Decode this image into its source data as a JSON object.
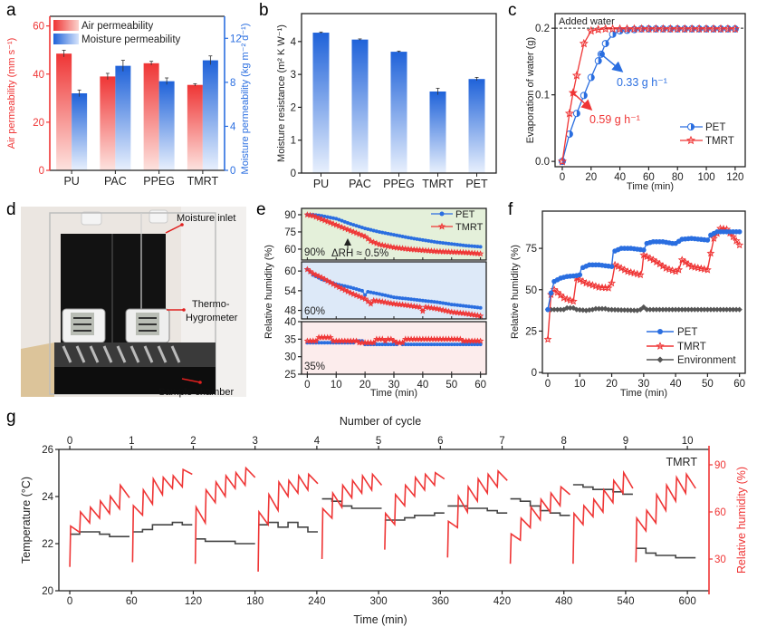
{
  "panel_labels": [
    "a",
    "b",
    "c",
    "d",
    "e",
    "f",
    "g"
  ],
  "colors": {
    "red": "#ef3535",
    "blue": "#2a6ee0",
    "grey": "#444444",
    "env": "#555555"
  },
  "photo_d": {
    "labels": {
      "moisture_inlet": "Moisture inlet",
      "thermo_1": "Thermo-",
      "thermo_2": "Hygrometer",
      "sample_chamber": "Sample chamber"
    }
  },
  "chart_data": [
    {
      "panel": "a",
      "type": "bar",
      "categories": [
        "PU",
        "PAC",
        "PPEG",
        "TMRT"
      ],
      "series": [
        {
          "name": "Air permeability",
          "axis": "left",
          "values": [
            48.5,
            39.0,
            44.5,
            35.5
          ],
          "errors": [
            1.4,
            1.3,
            0.8,
            0.5
          ],
          "color": "#ef3535"
        },
        {
          "name": "Moisture permeability",
          "axis": "right",
          "values": [
            7.0,
            9.5,
            8.1,
            10.0
          ],
          "errors": [
            0.3,
            0.5,
            0.3,
            0.4
          ],
          "color": "#2a6ee0"
        }
      ],
      "ylabel_left": "Air permeability (mm s⁻¹)",
      "ylabel_right": "Moisture permeability (kg m⁻² d⁻¹)",
      "ylim_left": [
        0,
        64
      ],
      "yticks_left": [
        "0",
        "20",
        "40",
        "60"
      ],
      "ylim_right": [
        0,
        14
      ],
      "yticks_right": [
        "0",
        "4",
        "8",
        "12"
      ],
      "legend": "top-left"
    },
    {
      "panel": "b",
      "type": "bar",
      "categories": [
        "PU",
        "PAC",
        "PPEG",
        "TMRT",
        "PET"
      ],
      "values": [
        4.27,
        4.06,
        3.69,
        2.48,
        2.86
      ],
      "errors": [
        0.02,
        0.02,
        0.02,
        0.1,
        0.05
      ],
      "ylabel": "Moisture resistance (m² K W⁻¹)",
      "ylim": [
        0,
        4.85
      ],
      "yticks": [
        "0",
        "1",
        "2",
        "3",
        "4"
      ],
      "color": "#2a6ee0"
    },
    {
      "panel": "c",
      "type": "line",
      "xlabel": "Time (min)",
      "ylabel": "Evaporation of water (g)",
      "xlim": [
        -5,
        127
      ],
      "xticks": [
        "0",
        "20",
        "40",
        "60",
        "80",
        "100",
        "120"
      ],
      "ylim": [
        -0.008,
        0.222
      ],
      "yticks": [
        "0.0",
        "0.1",
        "0.2"
      ],
      "reference_line": {
        "y": 0.2,
        "label": "Added water"
      },
      "series": [
        {
          "name": "PET",
          "color": "#2a6ee0",
          "marker": "half-circle",
          "x": [
            0,
            5,
            10,
            15,
            20,
            25,
            27,
            30,
            35,
            40,
            45,
            50,
            55,
            60,
            65,
            70,
            75,
            80,
            85,
            90,
            95,
            100,
            105,
            110,
            115,
            120
          ],
          "y": [
            0,
            0.041,
            0.072,
            0.099,
            0.126,
            0.151,
            0.161,
            0.177,
            0.191,
            0.196,
            0.197,
            0.198,
            0.199,
            0.199,
            0.199,
            0.199,
            0.199,
            0.199,
            0.199,
            0.199,
            0.199,
            0.199,
            0.199,
            0.199,
            0.199,
            0.199
          ]
        },
        {
          "name": "TMRT",
          "color": "#ef3535",
          "marker": "star",
          "x": [
            0,
            5,
            7.5,
            10,
            15,
            20,
            25,
            30,
            35,
            40,
            45,
            50,
            55,
            60,
            65,
            70,
            75,
            80,
            85,
            90,
            95,
            100,
            105,
            110,
            115,
            120
          ],
          "y": [
            0,
            0.072,
            0.103,
            0.129,
            0.177,
            0.196,
            0.198,
            0.199,
            0.199,
            0.199,
            0.199,
            0.199,
            0.199,
            0.199,
            0.199,
            0.199,
            0.199,
            0.199,
            0.199,
            0.199,
            0.199,
            0.199,
            0.199,
            0.199,
            0.199,
            0.199
          ]
        }
      ],
      "annotations": [
        {
          "text": "0.33 g h⁻¹",
          "series": "PET",
          "color": "#2a6ee0"
        },
        {
          "text": "0.59 g h⁻¹",
          "series": "TMRT",
          "color": "#ef3535"
        }
      ],
      "legend": "bottom-right"
    },
    {
      "panel": "e",
      "type": "line",
      "xlabel": "Time (min)",
      "ylabel": "Relative humidity (%)",
      "xlim": [
        -2,
        62
      ],
      "xticks": [
        "0",
        "10",
        "20",
        "30",
        "40",
        "50",
        "60"
      ],
      "subplots": [
        {
          "label": "90%",
          "note": "ΔRH ≈ 0.5%",
          "background": "#e4f0da",
          "ylim": [
            50.5,
            95.5
          ],
          "yticks": [
            "60",
            "75",
            "90"
          ],
          "series": [
            {
              "name": "PET",
              "x": [
                0,
                2,
                5,
                10,
                15,
                20,
                25,
                30,
                35,
                40,
                45,
                50,
                55,
                60
              ],
              "y": [
                90,
                90,
                89,
                86.5,
                82,
                78,
                75,
                72.5,
                70,
                68,
                66,
                64.5,
                63,
                62
              ]
            },
            {
              "name": "TMRT",
              "x": [
                0,
                2,
                5,
                10,
                15,
                20,
                22,
                25,
                30,
                35,
                40,
                45,
                50,
                55,
                60
              ],
              "y": [
                90,
                89,
                86,
                81,
                76,
                71,
                67,
                64,
                61.5,
                60,
                59,
                58,
                57.5,
                57,
                56
              ]
            }
          ]
        },
        {
          "label": "60%",
          "background": "#dde9f8",
          "ylim": [
            45.4,
            62.8
          ],
          "yticks": [
            "48",
            "54",
            "60"
          ],
          "series": [
            {
              "name": "PET",
              "x": [
                0,
                2,
                5,
                10,
                15,
                19,
                20,
                21,
                25,
                30,
                35,
                40,
                45,
                50,
                55,
                60
              ],
              "y": [
                60.5,
                58.8,
                57.5,
                56,
                55,
                54,
                52.7,
                53.7,
                53,
                52,
                51.5,
                51,
                50.5,
                49.8,
                49.3,
                48.8
              ]
            },
            {
              "name": "TMRT",
              "x": [
                0,
                2,
                5,
                10,
                15,
                20,
                22,
                23,
                25,
                30,
                35,
                39,
                40,
                41,
                45,
                50,
                55,
                60
              ],
              "y": [
                60.5,
                59.2,
                58,
                55.5,
                53.3,
                51.5,
                50,
                51,
                50.8,
                50,
                49.5,
                49,
                47.8,
                49,
                48.5,
                47.5,
                47,
                46.3
              ]
            }
          ]
        },
        {
          "label": "35%",
          "background": "#fcecec",
          "ylim": [
            25,
            40
          ],
          "yticks": [
            "25",
            "30",
            "35",
            "40"
          ],
          "series": [
            {
              "name": "PET",
              "x": [
                0,
                16,
                17,
                19,
                20,
                31,
                32,
                33,
                60
              ],
              "y": [
                34,
                34,
                34.5,
                34.5,
                33.5,
                33.5,
                34,
                33.5,
                33.5
              ]
            },
            {
              "name": "TMRT",
              "x": [
                0,
                3,
                4,
                8,
                9,
                17,
                18,
                20,
                23,
                24,
                26,
                27,
                28,
                29,
                31,
                33,
                34,
                53,
                54,
                60
              ],
              "y": [
                34.5,
                34.5,
                35.5,
                35.5,
                34.5,
                34.5,
                34,
                34,
                34,
                35,
                35,
                34.5,
                35,
                35,
                34,
                34,
                35,
                35,
                34.5,
                34.5
              ]
            }
          ]
        }
      ],
      "legend": [
        "PET",
        "TMRT"
      ]
    },
    {
      "panel": "f",
      "type": "line",
      "xlabel": "Time (min)",
      "ylabel": "Relative humidity (%)",
      "xlim": [
        -1.7,
        61.8
      ],
      "xticks": [
        "0",
        "10",
        "20",
        "30",
        "40",
        "50",
        "60"
      ],
      "ylim": [
        -0.5,
        97.5
      ],
      "yticks": [
        "0",
        "25",
        "50",
        "75"
      ],
      "series": [
        {
          "name": "PET",
          "color": "#2a6ee0",
          "marker": "circle",
          "x": [
            0,
            1,
            2,
            4,
            6,
            9,
            10,
            10.5,
            13,
            16,
            20,
            20.5,
            23,
            26,
            30,
            31,
            33,
            36,
            39,
            40,
            42,
            45,
            50,
            51,
            53,
            56,
            60
          ],
          "y": [
            38,
            48,
            55,
            57,
            58,
            58.5,
            59,
            63,
            65,
            65,
            64,
            73,
            75,
            75,
            74,
            78,
            79,
            79,
            78,
            78,
            80.5,
            81,
            80,
            83,
            85,
            85,
            85
          ]
        },
        {
          "name": "TMRT",
          "color": "#ef3535",
          "marker": "star",
          "x": [
            0,
            1,
            2,
            5,
            8,
            9,
            12,
            16,
            19,
            20,
            21,
            25,
            29,
            29.5,
            30,
            33,
            37,
            40,
            41,
            42,
            45,
            50,
            51,
            52,
            54,
            56,
            58,
            60
          ],
          "y": [
            20,
            47,
            50,
            45,
            43,
            57,
            54,
            51.5,
            51,
            54,
            65,
            61,
            59,
            62,
            71,
            68,
            63,
            61,
            62,
            68,
            64,
            62,
            72,
            81,
            87,
            86.5,
            82,
            77
          ]
        },
        {
          "name": "Environment",
          "color": "#555555",
          "marker": "diamond",
          "x": [
            0,
            5,
            6,
            8,
            9,
            12,
            14,
            15,
            18,
            19,
            28,
            29,
            30,
            31,
            60
          ],
          "y": [
            38,
            38,
            39,
            39,
            38,
            37.5,
            38,
            38.5,
            38.5,
            38,
            37.5,
            38,
            39.5,
            38,
            38
          ]
        }
      ],
      "legend": "bottom-right"
    },
    {
      "panel": "g",
      "type": "line",
      "xlabel": "Time (min)",
      "x2label": "Number of cycle",
      "ylabel": "Temperature (°C)",
      "ylabel_right": "Relative humidity (%)",
      "series_label": "TMRT",
      "xlim": [
        -10.6,
        621
      ],
      "xticks": [
        "0",
        "60",
        "120",
        "180",
        "240",
        "300",
        "360",
        "420",
        "480",
        "540",
        "600"
      ],
      "x2lim": [
        -0.177,
        10.35
      ],
      "x2ticks": [
        "0",
        "1",
        "2",
        "3",
        "4",
        "5",
        "6",
        "7",
        "8",
        "9",
        "10"
      ],
      "ylim": [
        20,
        26
      ],
      "yticks": [
        "20",
        "22",
        "24",
        "26"
      ],
      "ylim_right": [
        9.8,
        99.8
      ],
      "yticks_right": [
        "30",
        "60",
        "90"
      ],
      "cycles": [
        {
          "start": 0,
          "rh_start": 25,
          "rh_peaks": [
            51,
            60,
            63,
            67,
            70,
            77
          ],
          "rh_troughs": [
            47,
            53,
            56,
            59,
            62,
            69
          ],
          "temp": [
            22.4,
            22.5,
            22.5,
            22.4,
            22.3,
            22.3
          ]
        },
        {
          "start": 61,
          "rh_start": 28,
          "rh_peaks": [
            64,
            74,
            81,
            82,
            83,
            87
          ],
          "rh_troughs": [
            58,
            65,
            71,
            75,
            76,
            84
          ],
          "temp": [
            22.5,
            22.6,
            22.8,
            22.8,
            22.9,
            22.8
          ]
        },
        {
          "start": 122,
          "rh_start": 27,
          "rh_peaks": [
            63,
            74,
            79,
            83,
            85,
            88
          ],
          "rh_troughs": [
            53,
            66,
            70,
            75,
            77,
            82
          ],
          "temp": [
            22.2,
            22.1,
            22.1,
            22.1,
            22.0,
            22.0
          ]
        },
        {
          "start": 183,
          "rh_start": 22,
          "rh_peaks": [
            60,
            71,
            79,
            80,
            83,
            84
          ],
          "rh_troughs": [
            52,
            61,
            70,
            72,
            74,
            78
          ],
          "temp": [
            22.8,
            22.9,
            22.7,
            22.9,
            22.7,
            22.5
          ]
        },
        {
          "start": 245,
          "rh_start": 30,
          "rh_peaks": [
            62,
            72,
            77,
            80,
            83,
            84
          ],
          "rh_troughs": [
            56,
            63,
            69,
            72,
            74,
            77
          ],
          "temp": [
            23.9,
            23.8,
            23.6,
            23.5,
            23.5,
            23.5
          ]
        },
        {
          "start": 306,
          "rh_start": 36,
          "rh_peaks": [
            59,
            71,
            77,
            82,
            84,
            85
          ],
          "rh_troughs": [
            52,
            64,
            70,
            74,
            77,
            81
          ],
          "temp": [
            23.0,
            23.0,
            23.1,
            23.2,
            23.2,
            23.3
          ]
        },
        {
          "start": 367,
          "rh_start": 31,
          "rh_peaks": [
            54,
            70,
            76,
            81,
            84,
            86
          ],
          "rh_troughs": [
            50,
            60,
            67,
            72,
            76,
            80
          ],
          "temp": [
            23.6,
            23.6,
            23.5,
            23.5,
            23.4,
            23.3
          ]
        },
        {
          "start": 428,
          "rh_start": 27,
          "rh_peaks": [
            46,
            56,
            63,
            68,
            72,
            76
          ],
          "rh_troughs": [
            42,
            50,
            55,
            60,
            64,
            71
          ],
          "temp": [
            23.9,
            23.8,
            23.6,
            23.4,
            23.3,
            23.2
          ]
        },
        {
          "start": 489,
          "rh_start": 27,
          "rh_peaks": [
            59,
            64,
            68,
            74,
            80,
            85
          ],
          "rh_troughs": [
            52,
            57,
            60,
            66,
            72,
            75
          ],
          "temp": [
            24.5,
            24.4,
            24.3,
            24.3,
            24.2,
            24.1
          ]
        },
        {
          "start": 550,
          "rh_start": 28,
          "rh_peaks": [
            56,
            61,
            71,
            77,
            82,
            84
          ],
          "rh_troughs": [
            48,
            53,
            61,
            67,
            72,
            75
          ],
          "temp": [
            21.8,
            21.6,
            21.5,
            21.5,
            21.4,
            21.4
          ]
        }
      ]
    }
  ]
}
